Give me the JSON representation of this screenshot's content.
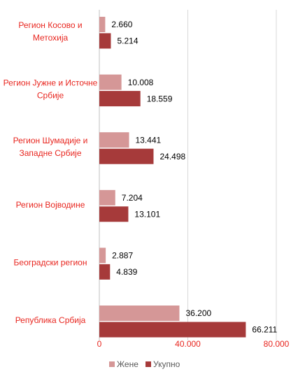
{
  "chart_data": {
    "type": "bar",
    "orientation": "horizontal",
    "categories": [
      "Регион Косово и\nМетохија",
      "Регион Јужне и Источне\nСрбије",
      "Регион Шумадије и\nЗападне Србије",
      "Регион Војводине",
      "Београдски регион",
      "Република Србија"
    ],
    "series": [
      {
        "name": "Жене",
        "color": "#d59797",
        "values": [
          2660,
          10008,
          13441,
          7204,
          2887,
          36200
        ],
        "value_labels": [
          "2.660",
          "10.008",
          "13.441",
          "7.204",
          "2.887",
          "36.200"
        ]
      },
      {
        "name": "Укупно",
        "color": "#a63a3a",
        "values": [
          5214,
          18559,
          24498,
          13101,
          4839,
          66211
        ],
        "value_labels": [
          "5.214",
          "18.559",
          "24.498",
          "13.101",
          "4.839",
          "66.211"
        ]
      }
    ],
    "xlim": [
      0,
      80000
    ],
    "xticks": [
      0,
      {
        "value": 40000,
        "label": "40.000"
      },
      {
        "value": 80000,
        "label": "80.000"
      }
    ],
    "grid": true,
    "legend": "bottom"
  }
}
